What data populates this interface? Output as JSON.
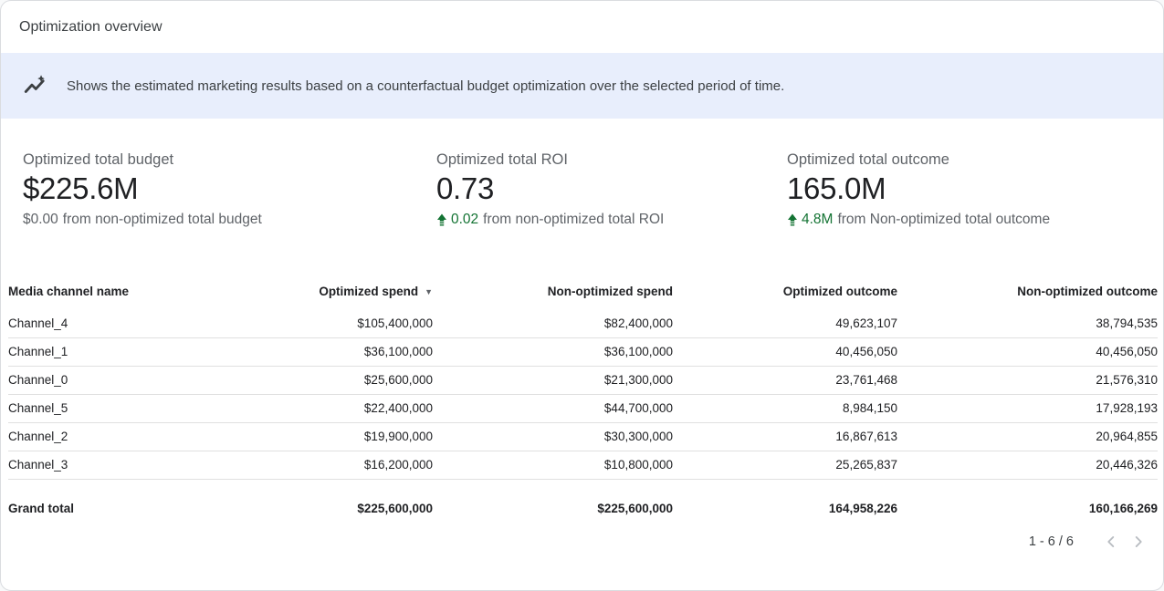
{
  "title": "Optimization overview",
  "banner": {
    "icon": "insights-icon",
    "text": "Shows the estimated marketing results based on a counterfactual budget optimization over the selected period of time."
  },
  "colors": {
    "accent_green": "#137333",
    "banner_bg": "#e8eefc",
    "text_primary": "#202124",
    "text_secondary": "#5f6368",
    "row_divider": "#e0e0e0"
  },
  "kpis": [
    {
      "label": "Optimized total budget",
      "value": "$225.6M",
      "delta_amount": "$0.00",
      "delta_rest": "from non-optimized total budget",
      "delta_positive": false
    },
    {
      "label": "Optimized total ROI",
      "value": "0.73",
      "delta_amount": "0.02",
      "delta_rest": "from non-optimized total ROI",
      "delta_positive": true
    },
    {
      "label": "Optimized total outcome",
      "value": "165.0M",
      "delta_amount": "4.8M",
      "delta_rest": "from Non-optimized total outcome",
      "delta_positive": true
    }
  ],
  "table": {
    "columns": [
      {
        "label": "Media channel name",
        "align": "left",
        "sorted": null
      },
      {
        "label": "Optimized spend",
        "align": "right",
        "sorted": "desc"
      },
      {
        "label": "Non-optimized spend",
        "align": "right",
        "sorted": null
      },
      {
        "label": "Optimized outcome",
        "align": "right",
        "sorted": null
      },
      {
        "label": "Non-optimized outcome",
        "align": "right",
        "sorted": null
      }
    ],
    "rows": [
      [
        "Channel_4",
        "$105,400,000",
        "$82,400,000",
        "49,623,107",
        "38,794,535"
      ],
      [
        "Channel_1",
        "$36,100,000",
        "$36,100,000",
        "40,456,050",
        "40,456,050"
      ],
      [
        "Channel_0",
        "$25,600,000",
        "$21,300,000",
        "23,761,468",
        "21,576,310"
      ],
      [
        "Channel_5",
        "$22,400,000",
        "$44,700,000",
        "8,984,150",
        "17,928,193"
      ],
      [
        "Channel_2",
        "$19,900,000",
        "$30,300,000",
        "16,867,613",
        "20,964,855"
      ],
      [
        "Channel_3",
        "$16,200,000",
        "$10,800,000",
        "25,265,837",
        "20,446,326"
      ]
    ],
    "grand_total": [
      "Grand total",
      "$225,600,000",
      "$225,600,000",
      "164,958,226",
      "160,166,269"
    ]
  },
  "pagination": {
    "range_label": "1 - 6 / 6",
    "prev_icon": "chevron-left-icon",
    "next_icon": "chevron-right-icon"
  }
}
